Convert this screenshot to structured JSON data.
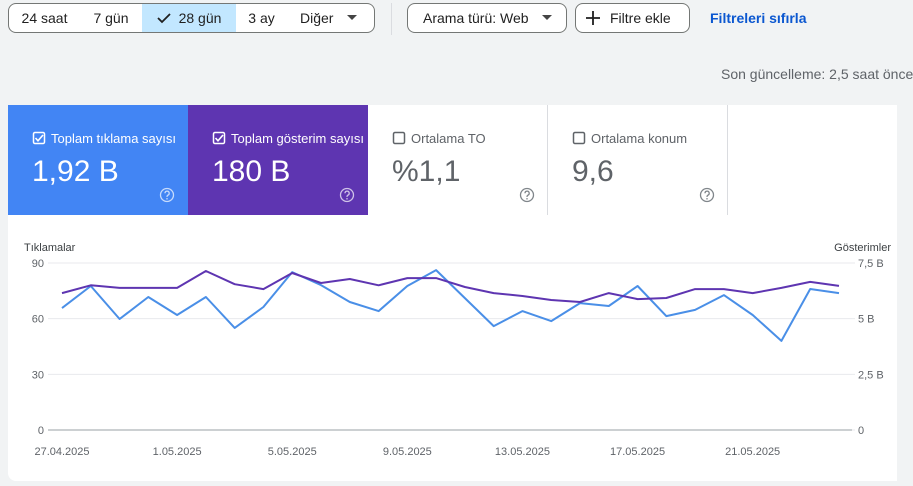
{
  "toolbar": {
    "date_ranges": [
      "24 saat",
      "7 gün",
      "28 gün",
      "3 ay"
    ],
    "selected_index": 2,
    "more": "Diğer",
    "search_type": "Arama türü: Web",
    "add_filter": "Filtre ekle",
    "reset": "Filtreleri sıfırla"
  },
  "last_update": "Son güncelleme: 2,5 saat önce",
  "metrics": [
    {
      "label": "Toplam tıklama sayısı",
      "value": "1,92 B",
      "checked": true,
      "color": "#4285f4"
    },
    {
      "label": "Toplam gösterim sayısı",
      "value": "180 B",
      "checked": true,
      "color": "#5e35b1"
    },
    {
      "label": "Ortalama TO",
      "value": "%1,1",
      "checked": false
    },
    {
      "label": "Ortalama konum",
      "value": "9,6",
      "checked": false
    }
  ],
  "chart_data": {
    "type": "line",
    "categories": [
      "27.04.2025",
      null,
      null,
      null,
      "1.05.2025",
      null,
      null,
      null,
      "5.05.2025",
      null,
      null,
      null,
      "9.05.2025",
      null,
      null,
      null,
      "13.05.2025",
      null,
      null,
      null,
      "17.05.2025",
      null,
      null,
      null,
      "21.05.2025",
      null,
      null,
      null
    ],
    "series": [
      {
        "name": "Tıklamalar",
        "color": "#4a8fe7",
        "values": [
          65.7,
          77.6,
          59.8,
          71.7,
          62,
          71.7,
          55,
          66.3,
          85.1,
          78.1,
          69,
          64.1,
          77.6,
          86.2,
          71.1,
          56,
          64.1,
          58.7,
          68.4,
          66.8,
          77.6,
          61.4,
          64.7,
          72.7,
          62,
          48,
          76,
          73.8
        ]
      },
      {
        "name": "Gösterimler",
        "color": "#5e35b1",
        "axis": "y2",
        "values": [
          6.15,
          6.5,
          6.38,
          6.38,
          6.38,
          7.14,
          6.55,
          6.33,
          7.05,
          6.6,
          6.78,
          6.5,
          6.82,
          6.82,
          6.42,
          6.15,
          6.02,
          5.84,
          5.75,
          6.15,
          5.88,
          5.93,
          6.33,
          6.33,
          6.15,
          6.38,
          6.65,
          6.47
        ]
      }
    ],
    "ylim": [
      0,
      90
    ],
    "yticks": [
      0,
      30,
      60,
      90
    ],
    "y2lim": [
      0,
      7.5
    ],
    "y2ticks": [
      0,
      {
        "value": 2.5,
        "label": "2,5 B"
      },
      {
        "value": 5,
        "label": "5 B"
      },
      {
        "value": 7.5,
        "label": "7,5 B"
      }
    ],
    "grid": true
  }
}
